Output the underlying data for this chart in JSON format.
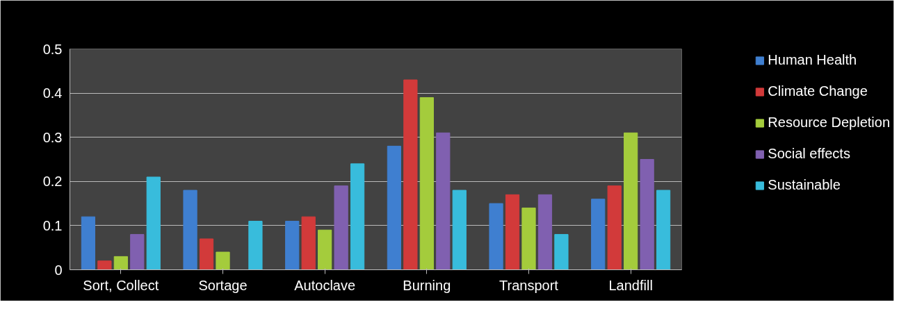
{
  "chart_data": {
    "type": "bar",
    "categories": [
      "Sort, Collect",
      "Sortage",
      "Autoclave",
      "Burning",
      "Transport",
      "Landfill"
    ],
    "series": [
      {
        "name": "Human Health",
        "color": "#3f7fd0",
        "values": [
          0.12,
          0.18,
          0.11,
          0.28,
          0.15,
          0.16
        ]
      },
      {
        "name": "Climate Change",
        "color": "#d23a3a",
        "values": [
          0.02,
          0.07,
          0.12,
          0.43,
          0.17,
          0.19
        ]
      },
      {
        "name": "Resource Depletion",
        "color": "#a4cc3c",
        "values": [
          0.03,
          0.04,
          0.09,
          0.39,
          0.14,
          0.31
        ]
      },
      {
        "name": "Social effects",
        "color": "#8060b0",
        "values": [
          0.08,
          null,
          0.19,
          0.31,
          0.17,
          0.25
        ]
      },
      {
        "name": "Sustainable",
        "color": "#38bcdc",
        "values": [
          0.21,
          0.11,
          0.24,
          0.18,
          0.08,
          0.18
        ]
      }
    ],
    "ylim": [
      0,
      0.5
    ],
    "yticks": [
      0,
      0.1,
      0.2,
      0.3,
      0.4,
      0.5
    ],
    "grid": "y",
    "legend": "right"
  }
}
